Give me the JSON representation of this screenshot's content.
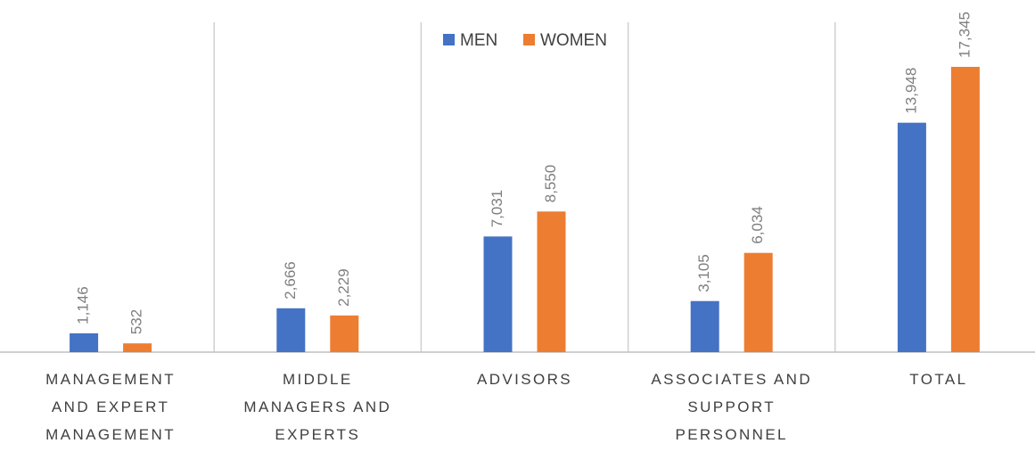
{
  "chart_data": {
    "type": "bar",
    "categories": [
      [
        "MANAGEMENT",
        "AND EXPERT",
        "MANAGEMENT"
      ],
      [
        "MIDDLE",
        "MANAGERS AND",
        "EXPERTS"
      ],
      [
        "ADVISORS"
      ],
      [
        "ASSOCIATES AND",
        "SUPPORT",
        "PERSONNEL"
      ],
      [
        "TOTAL"
      ]
    ],
    "series": [
      {
        "name": "MEN",
        "color": "#4472c4",
        "values": [
          1146,
          2666,
          7031,
          3105,
          13948
        ],
        "value_labels": [
          "1,146",
          "2,666",
          "7,031",
          "3,105",
          "13,948"
        ]
      },
      {
        "name": "WOMEN",
        "color": "#ed7d31",
        "values": [
          532,
          2229,
          8550,
          6034,
          17345
        ],
        "value_labels": [
          "532",
          "2,229",
          "8,550",
          "6,034",
          "17,345"
        ]
      }
    ],
    "legend": "top"
  }
}
